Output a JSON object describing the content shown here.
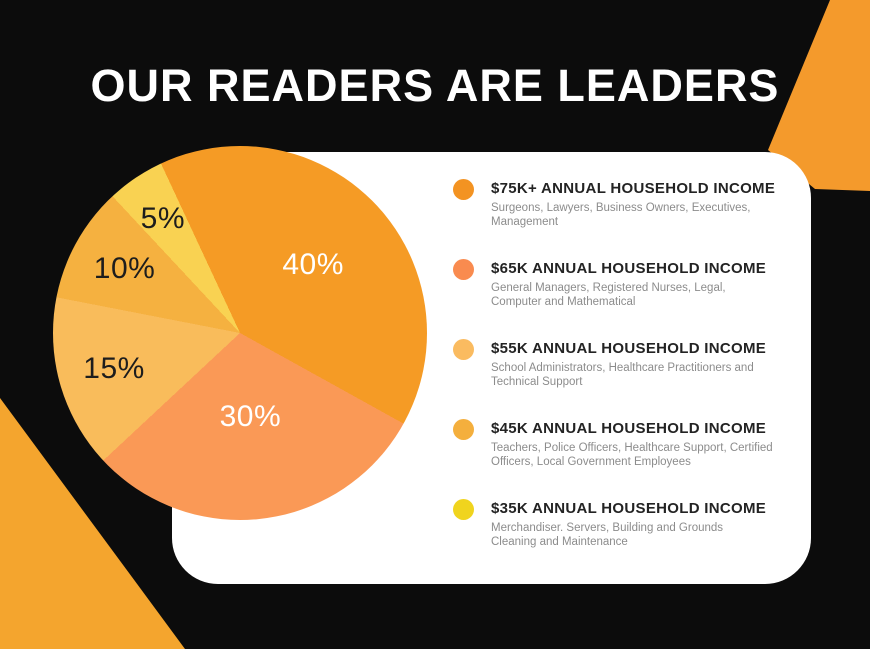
{
  "title": "OUR READERS ARE LEADERS",
  "legend": {
    "items": [
      {
        "label": "$75K+ ANNUAL HOUSEHOLD INCOME",
        "description": "Surgeons, Lawyers, Business Owners, Executives,\nManagement",
        "dot_color": "#F39322"
      },
      {
        "label": "$65K ANNUAL HOUSEHOLD INCOME",
        "description": "General Managers, Registered Nurses, Legal,\nComputer and Mathematical",
        "dot_color": "#F98B4F"
      },
      {
        "label": "$55K ANNUAL HOUSEHOLD INCOME",
        "description": "School Administrators, Healthcare Practitioners and\nTechnical Support",
        "dot_color": "#FABB60"
      },
      {
        "label": "$45K ANNUAL HOUSEHOLD INCOME",
        "description": "Teachers, Police Officers, Healthcare Support, Certified\nOfficers, Local Government Employees",
        "dot_color": "#F4AF3D"
      },
      {
        "label": "$35K ANNUAL HOUSEHOLD INCOME",
        "description": "Merchandiser. Servers,  Building and Grounds\nCleaning and Maintenance",
        "dot_color": "#F0D41E"
      }
    ]
  },
  "chart_data": {
    "type": "pie",
    "title": "OUR READERS ARE LEADERS",
    "categories": [
      "$75K+ ANNUAL HOUSEHOLD INCOME",
      "$65K ANNUAL HOUSEHOLD INCOME",
      "$55K ANNUAL HOUSEHOLD INCOME",
      "$45K ANNUAL HOUSEHOLD INCOME",
      "$35K ANNUAL HOUSEHOLD INCOME"
    ],
    "values": [
      40,
      30,
      15,
      10,
      5
    ],
    "labels": [
      "40%",
      "30%",
      "15%",
      "10%",
      "5%"
    ],
    "colors": [
      "#F59B25",
      "#FA9956",
      "#F9BC5B",
      "#F5B140",
      "#F9D252"
    ],
    "label_text_colors": [
      "#FFFFFF",
      "#FFFFFF",
      "#1D1D1D",
      "#1D1D1D",
      "#1D1D1D"
    ],
    "start_angle_deg": -25,
    "direction": "clockwise",
    "legend_position": "right"
  },
  "colors": {
    "background": "#0C0C0C",
    "card": "#FFFFFF",
    "title_text": "#FFFFFF",
    "accent_top_right": "#F49A2C",
    "accent_bottom_left": "#F4A52E",
    "legend_label_text": "#232323",
    "legend_description_text": "#8C8C8C"
  }
}
